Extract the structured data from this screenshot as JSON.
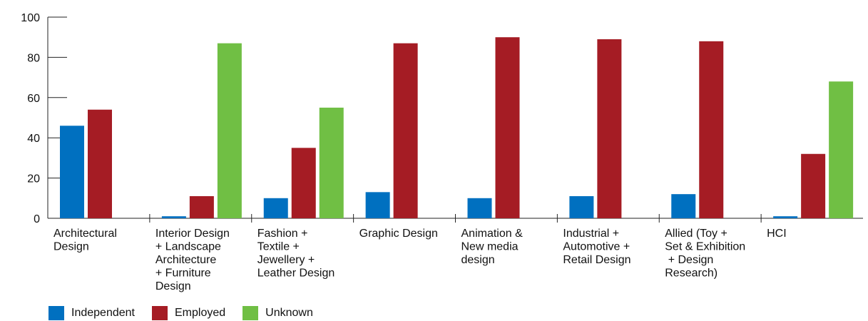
{
  "chart_data": {
    "type": "bar",
    "title": "",
    "xlabel": "",
    "ylabel": "",
    "ylim": [
      0,
      100
    ],
    "yticks": [
      0,
      20,
      40,
      60,
      80,
      100
    ],
    "grid": false,
    "legend_position": "bottom-left",
    "categories": [
      [
        "Architectural",
        "Design"
      ],
      [
        "Interior Design",
        "+ Landscape",
        "Architecture",
        "+ Furniture",
        "Design"
      ],
      [
        "Fashion +",
        "Textile +",
        "Jewellery +",
        "Leather Design"
      ],
      [
        "Graphic Design"
      ],
      [
        "Animation &",
        "New media",
        "design"
      ],
      [
        "Industrial +",
        "Automotive +",
        "Retail Design"
      ],
      [
        "Allied (Toy +",
        "Set & Exhibition",
        " +  Design",
        "Research)"
      ],
      [
        "HCI"
      ]
    ],
    "series": [
      {
        "name": "Independent",
        "color": "#0070c0",
        "values": [
          46,
          1,
          10,
          13,
          10,
          11,
          12,
          1
        ]
      },
      {
        "name": "Employed",
        "color": "#a51c24",
        "values": [
          54,
          11,
          35,
          87,
          90,
          89,
          88,
          32
        ]
      },
      {
        "name": "Unknown",
        "color": "#70bf44",
        "values": [
          0,
          87,
          55,
          0,
          0,
          0,
          0,
          68
        ]
      }
    ]
  }
}
